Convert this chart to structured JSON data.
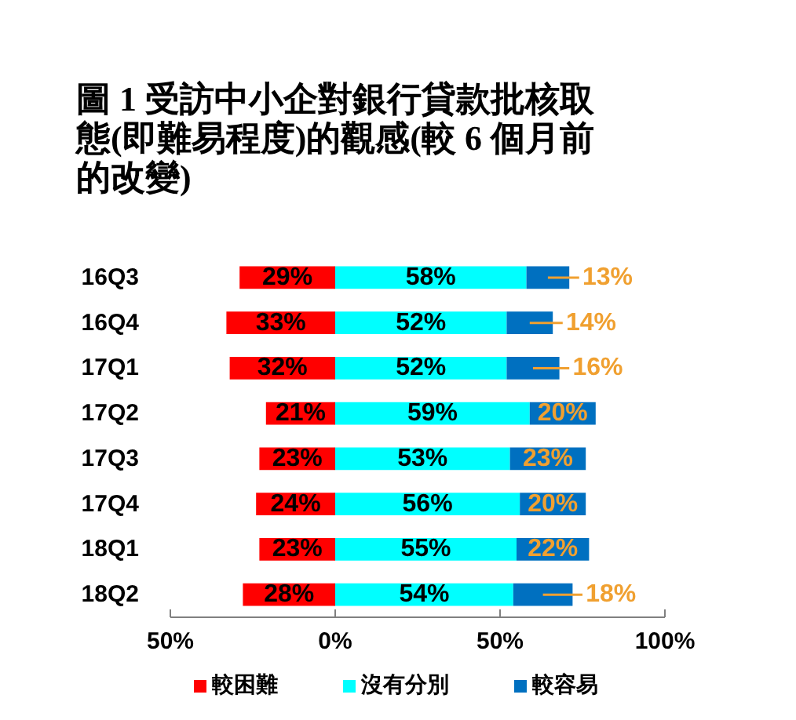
{
  "chart_data": {
    "type": "bar",
    "orientation": "horizontal",
    "stacked": true,
    "title": "圖 1 受訪中小企對銀行貸款批核取態(即難易程度)的觀感(較 6 個月前的改變)",
    "categories": [
      "16Q3",
      "16Q4",
      "17Q1",
      "17Q2",
      "17Q3",
      "17Q4",
      "18Q1",
      "18Q2"
    ],
    "series": [
      {
        "name": "較困難",
        "color": "#ff0000",
        "values": [
          29,
          33,
          32,
          21,
          23,
          24,
          23,
          28
        ],
        "base": [
          -29,
          -33,
          -32,
          -21,
          -23,
          -24,
          -23,
          -28
        ],
        "value_labels": [
          "29%",
          "33%",
          "32%",
          "21%",
          "23%",
          "24%",
          "23%",
          "28%"
        ]
      },
      {
        "name": "沒有分別",
        "color": "#00ffff",
        "values": [
          58,
          52,
          52,
          59,
          53,
          56,
          55,
          54
        ],
        "value_labels": [
          "58%",
          "52%",
          "52%",
          "59%",
          "53%",
          "56%",
          "55%",
          "54%"
        ]
      },
      {
        "name": "較容易",
        "color": "#0070c0",
        "values": [
          13,
          14,
          16,
          20,
          23,
          20,
          22,
          18
        ],
        "value_labels": [
          "13%",
          "14%",
          "16%",
          "20%",
          "23%",
          "20%",
          "22%",
          "18%"
        ]
      }
    ],
    "xlim": [
      -50,
      100
    ],
    "xticks": [
      {
        "value": -50,
        "label": "50%"
      },
      {
        "value": 0,
        "label": "0%"
      },
      {
        "value": 50,
        "label": "50%"
      },
      {
        "value": 100,
        "label": "100%"
      }
    ],
    "legend": "bottom"
  }
}
